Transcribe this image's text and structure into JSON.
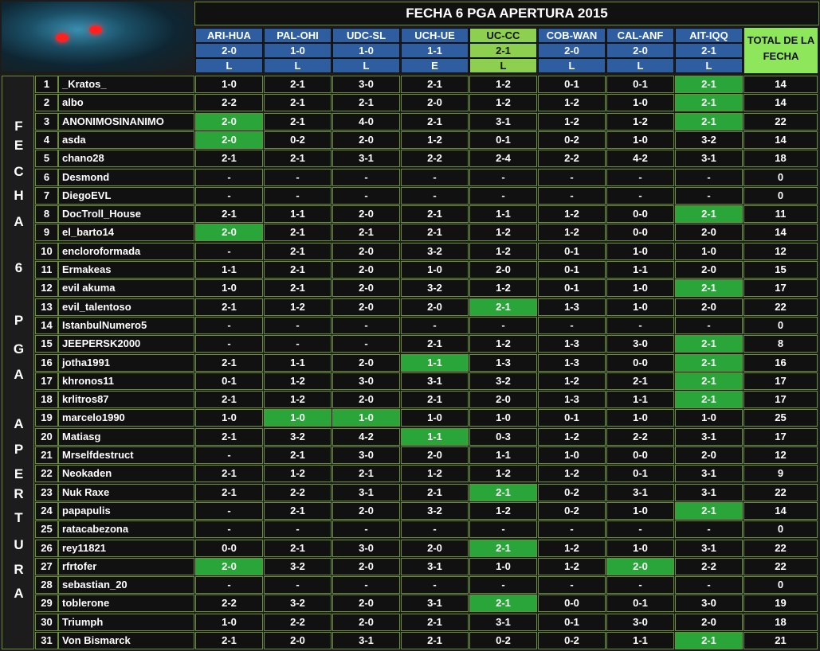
{
  "title": "FECHA 6 PGA APERTURA 2015",
  "total_header_line1": "TOTAL DE LA",
  "total_header_line2": "FECHA",
  "sidebar_letters": [
    "F",
    "E",
    "C",
    "H",
    "A",
    "6",
    "P",
    "G",
    "A",
    "A",
    "P",
    "E",
    "R",
    "T",
    "U",
    "R",
    "A"
  ],
  "matches": [
    {
      "team": "ARI-HUA",
      "score": "2-0",
      "result": "L",
      "selected": false
    },
    {
      "team": "PAL-OHI",
      "score": "1-0",
      "result": "L",
      "selected": false
    },
    {
      "team": "UDC-SL",
      "score": "1-0",
      "result": "L",
      "selected": false
    },
    {
      "team": "UCH-UE",
      "score": "1-1",
      "result": "E",
      "selected": false
    },
    {
      "team": "UC-CC",
      "score": "2-1",
      "result": "L",
      "selected": true
    },
    {
      "team": "COB-WAN",
      "score": "2-0",
      "result": "L",
      "selected": false
    },
    {
      "team": "CAL-ANF",
      "score": "2-0",
      "result": "L",
      "selected": false
    },
    {
      "team": "AIT-IQQ",
      "score": "2-1",
      "result": "L",
      "selected": false
    }
  ],
  "colors": {
    "header_blue": "#2f5ea0",
    "highlight_green": "#2aa53a",
    "total_green": "#8ee75a",
    "border": "#6a8e3a"
  },
  "rows": [
    {
      "num": "1",
      "name": "_Kratos_",
      "picks": [
        "1-0",
        "2-1",
        "3-0",
        "2-1",
        "1-2",
        "0-1",
        "0-1",
        "2-1"
      ],
      "hl": [
        7
      ],
      "total": "14"
    },
    {
      "num": "2",
      "name": "albo",
      "picks": [
        "2-2",
        "2-1",
        "2-1",
        "2-0",
        "1-2",
        "1-2",
        "1-0",
        "2-1"
      ],
      "hl": [
        7
      ],
      "total": "14"
    },
    {
      "num": "3",
      "name": "ANONIMOSINANIMO",
      "picks": [
        "2-0",
        "2-1",
        "4-0",
        "2-1",
        "3-1",
        "1-2",
        "1-2",
        "2-1"
      ],
      "hl": [
        0,
        7
      ],
      "total": "22"
    },
    {
      "num": "4",
      "name": "asda",
      "picks": [
        "2-0",
        "0-2",
        "2-0",
        "1-2",
        "0-1",
        "0-2",
        "1-0",
        "3-2"
      ],
      "hl": [
        0
      ],
      "total": "14"
    },
    {
      "num": "5",
      "name": "chano28",
      "picks": [
        "2-1",
        "2-1",
        "3-1",
        "2-2",
        "2-4",
        "2-2",
        "4-2",
        "3-1"
      ],
      "hl": [],
      "total": "18"
    },
    {
      "num": "6",
      "name": "Desmond",
      "picks": [
        "-",
        "-",
        "-",
        "-",
        "-",
        "-",
        "-",
        "-"
      ],
      "hl": [],
      "total": "0"
    },
    {
      "num": "7",
      "name": "DiegoEVL",
      "picks": [
        "-",
        "-",
        "-",
        "-",
        "-",
        "-",
        "-",
        "-"
      ],
      "hl": [],
      "total": "0"
    },
    {
      "num": "8",
      "name": "DocTroll_House",
      "picks": [
        "2-1",
        "1-1",
        "2-0",
        "2-1",
        "1-1",
        "1-2",
        "0-0",
        "2-1"
      ],
      "hl": [
        7
      ],
      "total": "11"
    },
    {
      "num": "9",
      "name": "el_barto14",
      "picks": [
        "2-0",
        "2-1",
        "2-1",
        "2-1",
        "1-2",
        "1-2",
        "0-0",
        "2-0"
      ],
      "hl": [
        0
      ],
      "total": "14"
    },
    {
      "num": "10",
      "name": "encloroformada",
      "picks": [
        "-",
        "2-1",
        "2-0",
        "3-2",
        "1-2",
        "0-1",
        "1-0",
        "1-0"
      ],
      "hl": [],
      "total": "12"
    },
    {
      "num": "11",
      "name": "Ermakeas",
      "picks": [
        "1-1",
        "2-1",
        "2-0",
        "1-0",
        "2-0",
        "0-1",
        "1-1",
        "2-0"
      ],
      "hl": [],
      "total": "15"
    },
    {
      "num": "12",
      "name": "evil akuma",
      "picks": [
        "1-0",
        "2-1",
        "2-0",
        "3-2",
        "1-2",
        "0-1",
        "1-0",
        "2-1"
      ],
      "hl": [
        7
      ],
      "total": "17"
    },
    {
      "num": "13",
      "name": "evil_talentoso",
      "picks": [
        "2-1",
        "1-2",
        "2-0",
        "2-0",
        "2-1",
        "1-3",
        "1-0",
        "2-0"
      ],
      "hl": [
        4
      ],
      "total": "22"
    },
    {
      "num": "14",
      "name": "IstanbulNumero5",
      "picks": [
        "-",
        "-",
        "-",
        "-",
        "-",
        "-",
        "-",
        "-"
      ],
      "hl": [],
      "total": "0"
    },
    {
      "num": "15",
      "name": "JEEPERSK2000",
      "picks": [
        "-",
        "-",
        "-",
        "2-1",
        "1-2",
        "1-3",
        "3-0",
        "2-1"
      ],
      "hl": [
        7
      ],
      "total": "8"
    },
    {
      "num": "16",
      "name": "jotha1991",
      "picks": [
        "2-1",
        "1-1",
        "2-0",
        "1-1",
        "1-3",
        "1-3",
        "0-0",
        "2-1"
      ],
      "hl": [
        3,
        7
      ],
      "total": "16"
    },
    {
      "num": "17",
      "name": "khronos11",
      "picks": [
        "0-1",
        "1-2",
        "3-0",
        "3-1",
        "3-2",
        "1-2",
        "2-1",
        "2-1"
      ],
      "hl": [
        7
      ],
      "total": "17"
    },
    {
      "num": "18",
      "name": "krlitros87",
      "picks": [
        "2-1",
        "1-2",
        "2-0",
        "2-1",
        "2-0",
        "1-3",
        "1-1",
        "2-1"
      ],
      "hl": [
        7
      ],
      "total": "17"
    },
    {
      "num": "19",
      "name": "marcelo1990",
      "picks": [
        "1-0",
        "1-0",
        "1-0",
        "1-0",
        "1-0",
        "0-1",
        "1-0",
        "1-0"
      ],
      "hl": [
        1,
        2
      ],
      "total": "25"
    },
    {
      "num": "20",
      "name": "Matiasg",
      "picks": [
        "2-1",
        "3-2",
        "4-2",
        "1-1",
        "0-3",
        "1-2",
        "2-2",
        "3-1"
      ],
      "hl": [
        3
      ],
      "total": "17"
    },
    {
      "num": "21",
      "name": "Mrselfdestruct",
      "picks": [
        "-",
        "2-1",
        "3-0",
        "2-0",
        "1-1",
        "1-0",
        "0-0",
        "2-0"
      ],
      "hl": [],
      "total": "12"
    },
    {
      "num": "22",
      "name": "Neokaden",
      "picks": [
        "2-1",
        "1-2",
        "2-1",
        "1-2",
        "1-2",
        "1-2",
        "0-1",
        "3-1"
      ],
      "hl": [],
      "total": "9"
    },
    {
      "num": "23",
      "name": "Nuk Raxe",
      "picks": [
        "2-1",
        "2-2",
        "3-1",
        "2-1",
        "2-1",
        "0-2",
        "3-1",
        "3-1"
      ],
      "hl": [
        4
      ],
      "total": "22"
    },
    {
      "num": "24",
      "name": "papapulis",
      "picks": [
        "-",
        "2-1",
        "2-0",
        "3-2",
        "1-2",
        "0-2",
        "1-0",
        "2-1"
      ],
      "hl": [
        7
      ],
      "total": "14"
    },
    {
      "num": "25",
      "name": "ratacabezona",
      "picks": [
        "-",
        "-",
        "-",
        "-",
        "-",
        "-",
        "-",
        "-"
      ],
      "hl": [],
      "total": "0"
    },
    {
      "num": "26",
      "name": "rey11821",
      "picks": [
        "0-0",
        "2-1",
        "3-0",
        "2-0",
        "2-1",
        "1-2",
        "1-0",
        "3-1"
      ],
      "hl": [
        4
      ],
      "total": "22"
    },
    {
      "num": "27",
      "name": "rfrtofer",
      "picks": [
        "2-0",
        "3-2",
        "2-0",
        "3-1",
        "1-0",
        "1-2",
        "2-0",
        "2-2"
      ],
      "hl": [
        0,
        6
      ],
      "total": "22"
    },
    {
      "num": "28",
      "name": "sebastian_20",
      "picks": [
        "-",
        "-",
        "-",
        "-",
        "-",
        "-",
        "-",
        "-"
      ],
      "hl": [],
      "total": "0"
    },
    {
      "num": "29",
      "name": "toblerone",
      "picks": [
        "2-2",
        "3-2",
        "2-0",
        "3-1",
        "2-1",
        "0-0",
        "0-1",
        "3-0"
      ],
      "hl": [
        4
      ],
      "total": "19"
    },
    {
      "num": "30",
      "name": "Triumph",
      "picks": [
        "1-0",
        "2-2",
        "2-0",
        "2-1",
        "3-1",
        "0-1",
        "3-0",
        "2-0"
      ],
      "hl": [],
      "total": "18"
    },
    {
      "num": "31",
      "name": "Von Bismarck",
      "picks": [
        "2-1",
        "2-0",
        "3-1",
        "2-1",
        "0-2",
        "0-2",
        "1-1",
        "2-1"
      ],
      "hl": [
        7
      ],
      "total": "21"
    }
  ]
}
